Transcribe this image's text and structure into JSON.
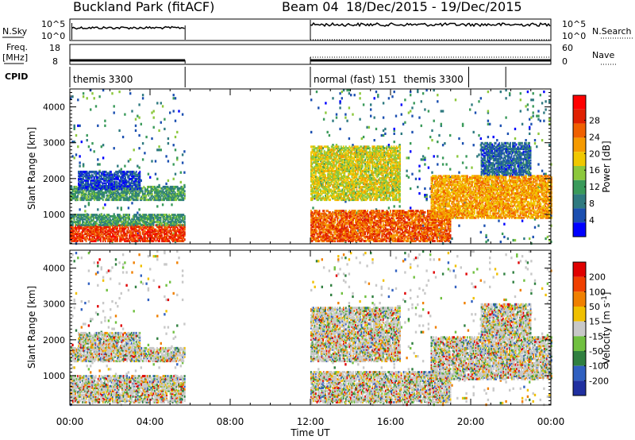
{
  "header": {
    "site": "Buckland Park (fitACF)",
    "beam": "Beam 04",
    "dates": "18/Dec/2015 - 19/Dec/2015"
  },
  "left_labels": {
    "nsky": "N.Sky",
    "freq": "Freq.",
    "mhz": "[MHz]",
    "cpid": "CPID"
  },
  "right_labels": {
    "nsearch": "N.Search",
    "nave": "Nave"
  },
  "noise_axis": {
    "left_top": "10^5",
    "left_bottom": "10^0",
    "right_top": "10^5",
    "right_bottom": "10^0"
  },
  "freq_axis": {
    "left_top": "18",
    "left_bottom": "8",
    "right_top": "60",
    "right_bottom": "0"
  },
  "cpid": {
    "segments": [
      {
        "label": "themis 3300",
        "start": 0,
        "end": 5.75
      },
      {
        "label": "normal (fast) 151",
        "start": 12.0,
        "end": 19.9
      },
      {
        "label": "themis 3300",
        "start": 19.9,
        "end": 21.75
      }
    ]
  },
  "power_colorbar": {
    "label": "Power [dB]",
    "ticks": [
      "4",
      "8",
      "12",
      "16",
      "20",
      "24",
      "28"
    ],
    "colors": [
      "#0000ff",
      "#1b4fb0",
      "#2f7a80",
      "#3a9a5a",
      "#8cc83c",
      "#f0c800",
      "#f59a00",
      "#f06000",
      "#e02000",
      "#ff0000"
    ]
  },
  "velocity_colorbar": {
    "label": "Velocity [m s^-1]",
    "ticks": [
      "200",
      "100",
      "50",
      "15",
      "-15",
      "-50",
      "-100",
      "-200"
    ],
    "colors": [
      "#2030a0",
      "#3060c0",
      "#308040",
      "#70c040",
      "#c8c8c8",
      "#f0c000",
      "#f08000",
      "#f04000",
      "#e00000"
    ]
  },
  "chart_data": [
    {
      "type": "heatmap",
      "name": "power",
      "ylabel": "Slant Range [km]",
      "xlabel": "Time UT",
      "x_ticks": [
        "00:00",
        "04:00",
        "08:00",
        "12:00",
        "16:00",
        "20:00",
        "00:00"
      ],
      "ylim": [
        180,
        4500
      ],
      "y_ticks": [
        1000,
        2000,
        3000,
        4000
      ],
      "data_gaps": [
        [
          5.75,
          12.0
        ]
      ],
      "bands": [
        {
          "t": [
            0,
            5.75
          ],
          "r": [
            250,
            700
          ],
          "level": 28
        },
        {
          "t": [
            0,
            5.75
          ],
          "r": [
            700,
            1000
          ],
          "level": 12
        },
        {
          "t": [
            0,
            5.75
          ],
          "r": [
            1400,
            1800
          ],
          "level": 12
        },
        {
          "t": [
            0.4,
            3.5
          ],
          "r": [
            1700,
            2200
          ],
          "level": 6
        },
        {
          "t": [
            12.0,
            19.0
          ],
          "r": [
            250,
            1100
          ],
          "level": 26
        },
        {
          "t": [
            12.0,
            16.5
          ],
          "r": [
            1400,
            2900
          ],
          "level": 18
        },
        {
          "t": [
            18.0,
            24.0
          ],
          "r": [
            900,
            2100
          ],
          "level": 22
        },
        {
          "t": [
            20.5,
            23.0
          ],
          "r": [
            2100,
            3000
          ],
          "level": 8
        }
      ]
    },
    {
      "type": "heatmap",
      "name": "velocity",
      "ylabel": "Slant Range [km]",
      "xlabel": "Time UT",
      "x_ticks": [
        "00:00",
        "04:00",
        "08:00",
        "12:00",
        "16:00",
        "20:00",
        "00:00"
      ],
      "ylim": [
        180,
        4500
      ],
      "y_ticks": [
        1000,
        2000,
        3000,
        4000
      ],
      "data_gaps": [
        [
          5.75,
          12.0
        ]
      ]
    }
  ]
}
